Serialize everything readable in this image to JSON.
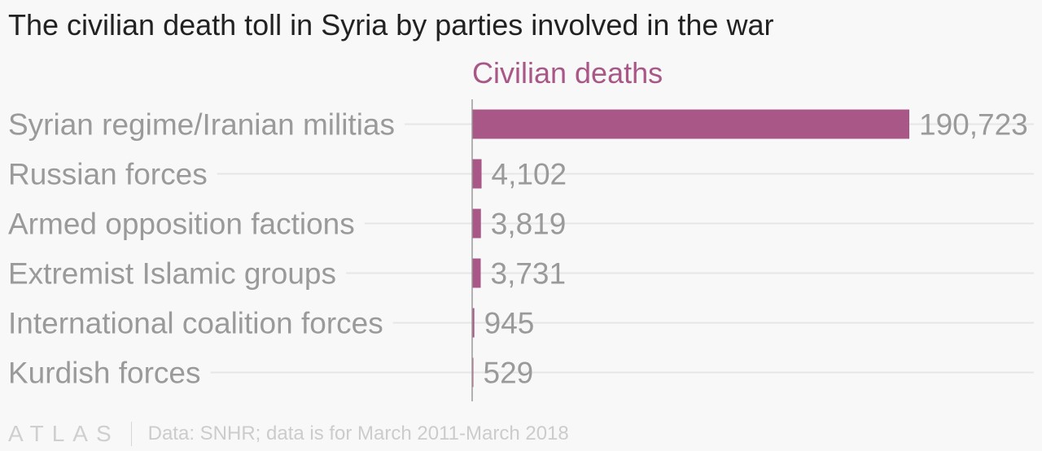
{
  "title": "The civilian death toll in Syria by parties involved in the war",
  "colors": {
    "bar": "#a85787",
    "series_label": "#a85787",
    "category_text": "#9a9a9a",
    "value_text": "#9a9a9a",
    "gridline": "#e6e6e6",
    "axis": "#9a9a9a"
  },
  "chart_data": {
    "type": "bar",
    "orientation": "horizontal",
    "categories": [
      "Syrian regime/Iranian militias",
      "Russian forces",
      "Armed opposition factions",
      "Extremist Islamic groups",
      "International coalition forces",
      "Kurdish forces"
    ],
    "series": [
      {
        "name": "Civilian deaths",
        "values": [
          190723,
          4102,
          3819,
          3731,
          945,
          529
        ]
      }
    ],
    "value_labels": [
      "190,723",
      "4,102",
      "3,819",
      "3,731",
      "945",
      "529"
    ],
    "xlim": [
      0,
      190723
    ],
    "grid": false,
    "legend": "none"
  },
  "footer": {
    "logo": "ATLAS",
    "source": "Data: SNHR; data is for March 2011-March 2018"
  }
}
